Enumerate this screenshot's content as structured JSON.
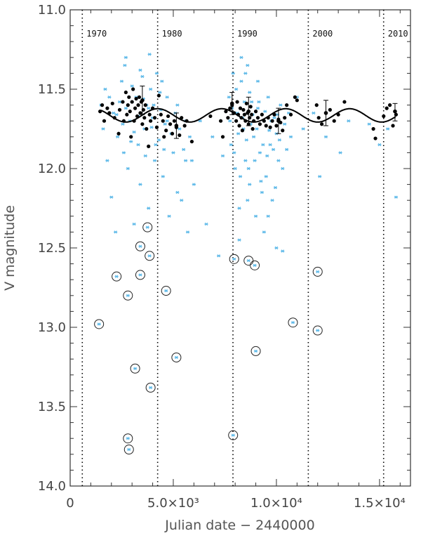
{
  "chart_data": {
    "type": "scatter",
    "title": "",
    "xlabel": "Julian date − 2440000",
    "ylabel": "V magnitude",
    "xlim": [
      0,
      16500
    ],
    "ylim": [
      14.0,
      11.0
    ],
    "y_inverted": true,
    "grid": false,
    "x_ticks": [
      {
        "value": 0,
        "label": "0"
      },
      {
        "value": 5000,
        "label": "5.0×10³"
      },
      {
        "value": 10000,
        "label": "1.0×10⁴"
      },
      {
        "value": 15000,
        "label": "1.5×10⁴"
      }
    ],
    "y_ticks": [
      {
        "value": 11.0,
        "label": "11.0"
      },
      {
        "value": 11.5,
        "label": "11.5"
      },
      {
        "value": 12.0,
        "label": "12.0"
      },
      {
        "value": 12.5,
        "label": "12.5"
      },
      {
        "value": 13.0,
        "label": "13.0"
      },
      {
        "value": 13.5,
        "label": "13.5"
      },
      {
        "value": 14.0,
        "label": "14.0"
      }
    ],
    "year_markers": [
      {
        "year": "1970",
        "x": 588
      },
      {
        "year": "1980",
        "x": 4241
      },
      {
        "year": "1990",
        "x": 7893
      },
      {
        "year": "2000",
        "x": 11546
      },
      {
        "year": "2010",
        "x": 15198
      }
    ],
    "series": [
      {
        "style": "asterisk",
        "color": "#5bb8e8",
        "points": [
          [
            1500,
            11.6
          ],
          [
            1600,
            11.75
          ],
          [
            1700,
            11.5
          ],
          [
            1800,
            11.95
          ],
          [
            1900,
            11.55
          ],
          [
            2000,
            12.18
          ],
          [
            2100,
            11.65
          ],
          [
            2200,
            12.4
          ],
          [
            2300,
            11.8
          ],
          [
            2400,
            11.58
          ],
          [
            2500,
            11.45
          ],
          [
            2600,
            11.9
          ],
          [
            2700,
            11.62
          ],
          [
            2800,
            12.0
          ],
          [
            2900,
            11.7
          ],
          [
            3000,
            11.48
          ],
          [
            3100,
            12.35
          ],
          [
            3200,
            11.55
          ],
          [
            3300,
            11.85
          ],
          [
            3400,
            12.1
          ],
          [
            3500,
            11.42
          ],
          [
            3600,
            11.75
          ],
          [
            3700,
            11.6
          ],
          [
            3800,
            12.25
          ],
          [
            3900,
            11.5
          ],
          [
            4000,
            11.68
          ],
          [
            4100,
            11.95
          ],
          [
            4200,
            11.4
          ],
          [
            4300,
            11.82
          ],
          [
            4400,
            11.63
          ],
          [
            4500,
            12.05
          ],
          [
            4600,
            11.72
          ],
          [
            4700,
            11.55
          ],
          [
            4800,
            12.3
          ],
          [
            4900,
            11.78
          ],
          [
            5000,
            11.9
          ],
          [
            5100,
            11.65
          ],
          [
            5200,
            12.15
          ],
          [
            5300,
            11.75
          ],
          [
            5400,
            12.2
          ],
          [
            5500,
            11.88
          ],
          [
            5600,
            11.7
          ],
          [
            5700,
            12.4
          ],
          [
            5800,
            11.8
          ],
          [
            5900,
            11.95
          ],
          [
            2700,
            11.3
          ],
          [
            3000,
            11.58
          ],
          [
            3400,
            11.38
          ],
          [
            3800,
            11.62
          ],
          [
            3850,
            11.28
          ],
          [
            4150,
            11.85
          ],
          [
            4450,
            11.45
          ],
          [
            4700,
            11.7
          ],
          [
            2550,
            11.72
          ],
          [
            2950,
            11.83
          ],
          [
            3300,
            11.67
          ],
          [
            3650,
            11.92
          ],
          [
            4050,
            11.6
          ],
          [
            4350,
            11.52
          ],
          [
            2250,
            11.66
          ],
          [
            2650,
            11.35
          ],
          [
            3100,
            11.77
          ],
          [
            3550,
            11.56
          ],
          [
            3950,
            11.74
          ],
          [
            4550,
            11.88
          ],
          [
            5200,
            11.6
          ],
          [
            5600,
            11.95
          ],
          [
            6000,
            12.1
          ],
          [
            6300,
            11.7
          ],
          [
            6600,
            12.35
          ],
          [
            6900,
            11.8
          ],
          [
            7200,
            12.55
          ],
          [
            7400,
            11.92
          ],
          [
            7700,
            11.55
          ],
          [
            7800,
            11.85
          ],
          [
            7900,
            11.4
          ],
          [
            8000,
            12.0
          ],
          [
            8100,
            11.65
          ],
          [
            8200,
            12.25
          ],
          [
            8300,
            11.45
          ],
          [
            8400,
            11.75
          ],
          [
            8500,
            11.95
          ],
          [
            8600,
            11.35
          ],
          [
            8700,
            12.1
          ],
          [
            8800,
            11.58
          ],
          [
            8900,
            11.8
          ],
          [
            9000,
            12.3
          ],
          [
            9100,
            11.62
          ],
          [
            9200,
            11.9
          ],
          [
            9300,
            12.15
          ],
          [
            9400,
            11.7
          ],
          [
            9500,
            12.05
          ],
          [
            9600,
            11.55
          ],
          [
            9700,
            11.85
          ],
          [
            9800,
            12.2
          ],
          [
            9900,
            11.68
          ],
          [
            10000,
            11.78
          ],
          [
            10100,
            11.95
          ],
          [
            10200,
            11.6
          ],
          [
            10300,
            12.0
          ],
          [
            10400,
            11.72
          ],
          [
            10500,
            11.88
          ],
          [
            10600,
            11.65
          ],
          [
            10700,
            11.8
          ],
          [
            7750,
            11.7
          ],
          [
            7850,
            11.62
          ],
          [
            7950,
            11.9
          ],
          [
            8050,
            11.5
          ],
          [
            8150,
            11.78
          ],
          [
            8250,
            12.05
          ],
          [
            8350,
            11.68
          ],
          [
            8450,
            11.58
          ],
          [
            8550,
            11.82
          ],
          [
            8650,
            12.0
          ],
          [
            8750,
            11.72
          ],
          [
            8850,
            11.66
          ],
          [
            8950,
            11.95
          ],
          [
            9050,
            11.75
          ],
          [
            9150,
            11.58
          ],
          [
            9250,
            12.08
          ],
          [
            9350,
            11.85
          ],
          [
            9450,
            11.64
          ],
          [
            9550,
            11.92
          ],
          [
            9650,
            11.76
          ],
          [
            9750,
            11.7
          ],
          [
            9850,
            11.88
          ],
          [
            9950,
            12.12
          ],
          [
            10050,
            11.66
          ],
          [
            10150,
            11.82
          ],
          [
            8500,
            11.4
          ],
          [
            8700,
            11.52
          ],
          [
            9100,
            11.45
          ],
          [
            8300,
            11.3
          ],
          [
            8600,
            12.2
          ],
          [
            9400,
            12.4
          ],
          [
            9600,
            12.3
          ],
          [
            10000,
            12.5
          ],
          [
            10300,
            12.52
          ],
          [
            8200,
            12.45
          ],
          [
            11000,
            11.55
          ],
          [
            11300,
            11.75
          ],
          [
            11800,
            11.65
          ],
          [
            12100,
            12.05
          ],
          [
            12400,
            11.8
          ],
          [
            13100,
            11.9
          ],
          [
            13500,
            11.7
          ],
          [
            15400,
            11.75
          ],
          [
            15800,
            12.18
          ],
          [
            15000,
            11.85
          ],
          [
            14500,
            11.72
          ]
        ]
      },
      {
        "style": "dot",
        "color": "#000000",
        "points": [
          [
            1450,
            11.64
          ],
          [
            1550,
            11.6
          ],
          [
            1650,
            11.7
          ],
          [
            1800,
            11.62
          ],
          [
            1900,
            11.65
          ],
          [
            2050,
            11.59
          ],
          [
            2150,
            11.68
          ],
          [
            2350,
            11.78
          ],
          [
            2400,
            11.63
          ],
          [
            2550,
            11.58
          ],
          [
            2600,
            11.7
          ],
          [
            2700,
            11.52
          ],
          [
            2750,
            11.66
          ],
          [
            2800,
            11.6
          ],
          [
            2850,
            11.55
          ],
          [
            2900,
            11.64
          ],
          [
            2950,
            11.8
          ],
          [
            3000,
            11.58
          ],
          [
            3050,
            11.5
          ],
          [
            3100,
            11.7
          ],
          [
            3150,
            11.62
          ],
          [
            3200,
            11.56
          ],
          [
            3250,
            11.67
          ],
          [
            3300,
            11.6
          ],
          [
            3350,
            11.55
          ],
          [
            3400,
            11.65
          ],
          [
            3450,
            11.58
          ],
          [
            3500,
            11.72
          ],
          [
            3550,
            11.63
          ],
          [
            3600,
            11.68
          ],
          [
            3650,
            11.6
          ],
          [
            3700,
            11.75
          ],
          [
            3800,
            11.86
          ],
          [
            3850,
            11.66
          ],
          [
            3900,
            11.7
          ],
          [
            4000,
            11.62
          ],
          [
            4100,
            11.68
          ],
          [
            4200,
            11.74
          ],
          [
            4300,
            11.54
          ],
          [
            4400,
            11.66
          ],
          [
            4500,
            11.7
          ],
          [
            4550,
            11.8
          ],
          [
            4650,
            11.76
          ],
          [
            4750,
            11.67
          ],
          [
            4850,
            11.72
          ],
          [
            4950,
            11.78
          ],
          [
            5050,
            11.7
          ],
          [
            5150,
            11.74
          ],
          [
            5300,
            11.79
          ],
          [
            5400,
            11.68
          ],
          [
            5550,
            11.73
          ],
          [
            5650,
            11.7
          ],
          [
            5900,
            11.83
          ],
          [
            6800,
            11.67
          ],
          [
            7300,
            11.7
          ],
          [
            7400,
            11.8
          ],
          [
            7550,
            11.64
          ],
          [
            7650,
            11.68
          ],
          [
            7750,
            11.62
          ],
          [
            7850,
            11.6
          ],
          [
            7950,
            11.65
          ],
          [
            8050,
            11.7
          ],
          [
            8100,
            11.58
          ],
          [
            8150,
            11.66
          ],
          [
            8200,
            11.73
          ],
          [
            8250,
            11.62
          ],
          [
            8300,
            11.68
          ],
          [
            8350,
            11.76
          ],
          [
            8400,
            11.63
          ],
          [
            8450,
            11.66
          ],
          [
            8500,
            11.7
          ],
          [
            8550,
            11.59
          ],
          [
            8600,
            11.65
          ],
          [
            8650,
            11.72
          ],
          [
            8700,
            11.68
          ],
          [
            8750,
            11.61
          ],
          [
            8800,
            11.66
          ],
          [
            8850,
            11.75
          ],
          [
            8900,
            11.7
          ],
          [
            9000,
            11.64
          ],
          [
            9100,
            11.68
          ],
          [
            9200,
            11.72
          ],
          [
            9300,
            11.66
          ],
          [
            9400,
            11.7
          ],
          [
            9500,
            11.73
          ],
          [
            9600,
            11.68
          ],
          [
            9700,
            11.74
          ],
          [
            9800,
            11.7
          ],
          [
            9900,
            11.66
          ],
          [
            10000,
            11.73
          ],
          [
            10100,
            11.69
          ],
          [
            10200,
            11.71
          ],
          [
            10300,
            11.76
          ],
          [
            10400,
            11.68
          ],
          [
            10500,
            11.6
          ],
          [
            10700,
            11.66
          ],
          [
            10900,
            11.55
          ],
          [
            11000,
            11.57
          ],
          [
            11950,
            11.6
          ],
          [
            12050,
            11.68
          ],
          [
            12200,
            11.72
          ],
          [
            12600,
            11.63
          ],
          [
            12800,
            11.7
          ],
          [
            13000,
            11.66
          ],
          [
            13300,
            11.58
          ],
          [
            14700,
            11.75
          ],
          [
            14800,
            11.81
          ],
          [
            15200,
            11.67
          ],
          [
            15350,
            11.62
          ],
          [
            15500,
            11.6
          ],
          [
            15650,
            11.73
          ],
          [
            15800,
            11.66
          ]
        ]
      },
      {
        "style": "circled-asterisk",
        "color": "#5bb8e8",
        "points": [
          [
            1400,
            12.98
          ],
          [
            2250,
            12.68
          ],
          [
            2800,
            13.7
          ],
          [
            2850,
            13.77
          ],
          [
            2800,
            12.8
          ],
          [
            3400,
            12.49
          ],
          [
            3400,
            12.67
          ],
          [
            3750,
            12.37
          ],
          [
            3850,
            12.55
          ],
          [
            3150,
            13.26
          ],
          [
            3900,
            13.38
          ],
          [
            4650,
            12.77
          ],
          [
            5150,
            13.19
          ],
          [
            7900,
            13.68
          ],
          [
            7950,
            12.57
          ],
          [
            8650,
            12.58
          ],
          [
            8950,
            12.61
          ],
          [
            9000,
            13.15
          ],
          [
            10800,
            12.97
          ],
          [
            12000,
            12.65
          ],
          [
            12000,
            13.02
          ]
        ]
      }
    ],
    "error_bars": [
      [
        3500,
        11.57,
        11.48,
        11.66
      ],
      [
        5150,
        11.73,
        11.65,
        11.81
      ],
      [
        7850,
        11.59,
        11.52,
        11.66
      ],
      [
        8650,
        11.64,
        11.55,
        11.73
      ],
      [
        10100,
        11.7,
        11.62,
        11.78
      ],
      [
        12400,
        11.65,
        11.57,
        11.73
      ],
      [
        15750,
        11.64,
        11.59,
        11.7
      ]
    ],
    "model_curve": {
      "type": "sinusoid",
      "mean": 11.665,
      "amplitude": 0.042,
      "period": 3100,
      "phase_x": 2700,
      "x_range": [
        1500,
        15800
      ]
    }
  }
}
